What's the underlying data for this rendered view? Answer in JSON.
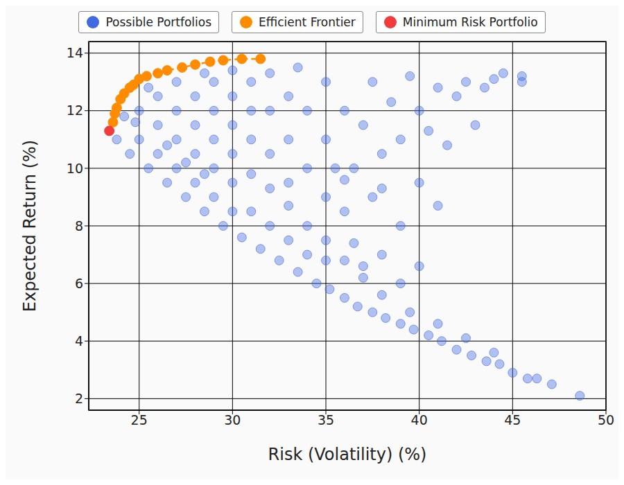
{
  "chart_data": {
    "type": "scatter",
    "x_label": "Risk (Volatility) (%)",
    "y_label": "Expected Return (%)",
    "xlim": [
      22.3,
      50
    ],
    "xticks": [
      25,
      30,
      35,
      40,
      45,
      50
    ],
    "ylim": [
      1.6,
      14.4
    ],
    "yticks": [
      2,
      4,
      6,
      8,
      10,
      12,
      14
    ],
    "grid": true,
    "legend": "top",
    "series": [
      {
        "name": "Possible Portfolios",
        "color": "#4169e1",
        "marker": "circle",
        "x": [
          48.6,
          47.1,
          46.3,
          45.8,
          45,
          44.3,
          43.6,
          42.8,
          42,
          41.2,
          40.5,
          39.7,
          39,
          38.2,
          37.5,
          36.7,
          36,
          35.2,
          34.5,
          33.5,
          32.5,
          31.5,
          30.5,
          29.5,
          28.5,
          27.5,
          26.5,
          25.5,
          24.5,
          23.8,
          44,
          42.5,
          41,
          39.5,
          38,
          37,
          36,
          35,
          34,
          33,
          32,
          31,
          25,
          25,
          25.5,
          26,
          26,
          26,
          27,
          27,
          27,
          27,
          28,
          28,
          28,
          28,
          28.5,
          29,
          29,
          29,
          29,
          29,
          30,
          30,
          30,
          30,
          30,
          30,
          31,
          31,
          31,
          31,
          32,
          32,
          32,
          32,
          33,
          33,
          33,
          33,
          33.5,
          34,
          34,
          34,
          35,
          35,
          35,
          35,
          36,
          36.5,
          36,
          37,
          37.5,
          37.5,
          38,
          38,
          38.5,
          39,
          39,
          39.5,
          40,
          40,
          40.5,
          41,
          41,
          41.5,
          42,
          42.5,
          43,
          43.5,
          44,
          44.5,
          45.5,
          45.5,
          38,
          36.5,
          37,
          35.5,
          40,
          39,
          36,
          24.2,
          24.8,
          26.5,
          27.5,
          28.5
        ],
        "values": [
          2.1,
          2.5,
          2.7,
          2.7,
          2.9,
          3.2,
          3.3,
          3.5,
          3.7,
          4.0,
          4.2,
          4.4,
          4.6,
          4.8,
          5.0,
          5.2,
          5.5,
          5.8,
          6.0,
          6.4,
          6.8,
          7.2,
          7.6,
          8.0,
          8.5,
          9.0,
          9.5,
          10.0,
          10.5,
          11.0,
          3.6,
          4.1,
          4.6,
          5.0,
          5.6,
          6.2,
          6.8,
          7.5,
          8.0,
          8.7,
          9.3,
          9.8,
          11,
          12,
          12.8,
          10.5,
          11.5,
          12.5,
          10,
          11,
          12,
          13,
          9.5,
          10.5,
          11.5,
          12.5,
          13.3,
          9,
          10,
          11,
          12,
          13,
          8.5,
          9.5,
          10.5,
          11.5,
          12.5,
          13.4,
          8.5,
          11,
          12,
          13,
          8,
          10.5,
          12,
          13.3,
          7.5,
          9.5,
          11,
          12.5,
          13.5,
          7,
          10,
          12,
          6.8,
          9,
          11,
          13,
          8.5,
          10,
          12,
          11.5,
          9,
          13,
          7,
          10.5,
          12.3,
          8,
          11,
          13.2,
          9.5,
          12,
          11.3,
          8.7,
          12.8,
          10.8,
          12.5,
          13,
          11.5,
          12.8,
          13.1,
          13.3,
          13.2,
          13,
          9.3,
          7.4,
          6.6,
          10,
          6.6,
          6,
          9.6,
          11.8,
          11.6,
          10.8,
          10.2,
          9.8
        ]
      },
      {
        "name": "Efficient Frontier",
        "color": "#ff8c00",
        "marker": "circle",
        "line_style": "dashed",
        "x": [
          23.6,
          23.7,
          23.8,
          24.0,
          24.2,
          24.5,
          24.7,
          25.0,
          25.4,
          26.0,
          26.5,
          27.3,
          28.0,
          28.8,
          29.5,
          30.5,
          31.5
        ],
        "values": [
          11.6,
          11.9,
          12.1,
          12.4,
          12.6,
          12.8,
          12.9,
          13.1,
          13.2,
          13.3,
          13.4,
          13.5,
          13.6,
          13.7,
          13.75,
          13.8,
          13.8
        ]
      },
      {
        "name": "Minimum Risk Portfolio",
        "color": "#f03c3c",
        "marker": "circle",
        "x": [
          23.4
        ],
        "values": [
          11.3
        ]
      }
    ]
  }
}
